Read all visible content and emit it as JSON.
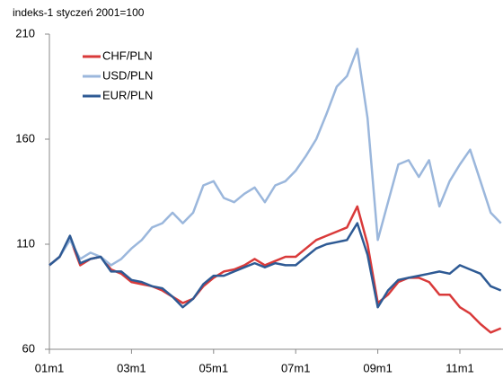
{
  "chart_data": {
    "type": "line",
    "subtitle": "indeks-1 styczeń 2001=100",
    "x": [
      2001.0,
      2001.25,
      2001.5,
      2001.75,
      2002.0,
      2002.25,
      2002.5,
      2002.75,
      2003.0,
      2003.25,
      2003.5,
      2003.75,
      2004.0,
      2004.25,
      2004.5,
      2004.75,
      2005.0,
      2005.25,
      2005.5,
      2005.75,
      2006.0,
      2006.25,
      2006.5,
      2006.75,
      2007.0,
      2007.25,
      2007.5,
      2007.75,
      2008.0,
      2008.25,
      2008.5,
      2008.75,
      2009.0,
      2009.25,
      2009.5,
      2009.75,
      2010.0,
      2010.25,
      2010.5,
      2010.75,
      2011.0,
      2011.25,
      2011.5,
      2011.75,
      2012.0
    ],
    "series": [
      {
        "name": "CHF/PLN",
        "color": "#d93a3a",
        "values": [
          100,
          104,
          113,
          100,
          103,
          104,
          98,
          96,
          92,
          91,
          90,
          88,
          85,
          82,
          84,
          90,
          94,
          97,
          98,
          100,
          103,
          100,
          102,
          104,
          104,
          108,
          112,
          114,
          116,
          118,
          128,
          110,
          82,
          86,
          92,
          94,
          94,
          92,
          86,
          86,
          80,
          77,
          72,
          68,
          70
        ]
      },
      {
        "name": "USD/PLN",
        "color": "#9bb7dc",
        "values": [
          100,
          104,
          112,
          103,
          106,
          104,
          100,
          103,
          108,
          112,
          118,
          120,
          125,
          120,
          125,
          138,
          140,
          132,
          130,
          134,
          137,
          130,
          138,
          140,
          145,
          152,
          160,
          172,
          185,
          190,
          203,
          170,
          112,
          130,
          148,
          150,
          142,
          150,
          128,
          140,
          148,
          155,
          140,
          125,
          120
        ]
      },
      {
        "name": "EUR/PLN",
        "color": "#2e5a94",
        "values": [
          100,
          104,
          114,
          101,
          103,
          104,
          97,
          97,
          93,
          92,
          90,
          89,
          85,
          80,
          84,
          91,
          95,
          95,
          97,
          99,
          101,
          99,
          101,
          100,
          100,
          104,
          108,
          110,
          111,
          112,
          120,
          105,
          80,
          88,
          93,
          94,
          95,
          96,
          97,
          96,
          100,
          98,
          96,
          90,
          88
        ]
      }
    ],
    "xlim": [
      2001.0,
      2012.05
    ],
    "xticks": [
      {
        "value": 2001,
        "label": "01m1"
      },
      {
        "value": 2003,
        "label": "03m1"
      },
      {
        "value": 2005,
        "label": "05m1"
      },
      {
        "value": 2007,
        "label": "07m1"
      },
      {
        "value": 2009,
        "label": "09m1"
      },
      {
        "value": 2011,
        "label": "11m1"
      }
    ],
    "ylim": [
      60,
      210
    ],
    "yticks": [
      60,
      110,
      160,
      210
    ],
    "legend": "upper left"
  }
}
